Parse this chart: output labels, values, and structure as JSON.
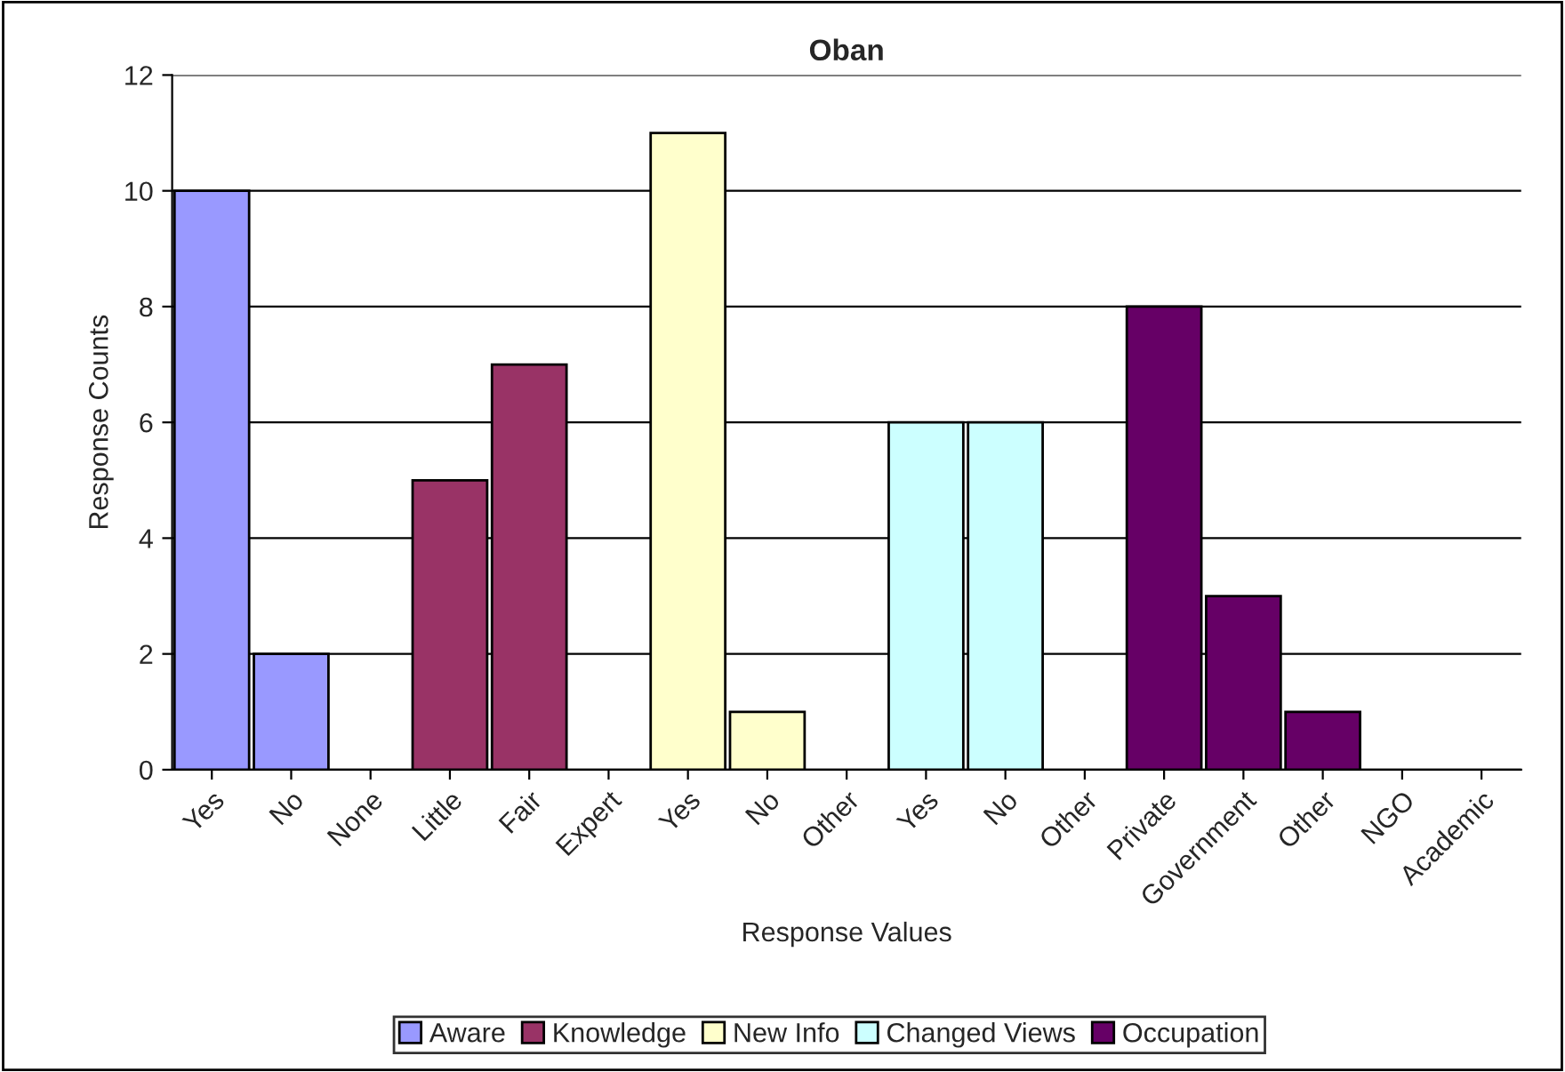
{
  "chart_data": {
    "type": "bar",
    "title": "Oban",
    "xlabel": "Response Values",
    "ylabel": "Response Counts",
    "categories": [
      "Yes",
      "No",
      "None",
      "Little",
      "Fair",
      "Expert",
      "Yes",
      "No",
      "Other",
      "Yes",
      "No",
      "Other",
      "Private",
      "Government",
      "Other",
      "NGO",
      "Academic"
    ],
    "series": [
      {
        "name": "Aware",
        "color": "#9999ff",
        "values": [
          10,
          2,
          0,
          null,
          null,
          null,
          null,
          null,
          null,
          null,
          null,
          null,
          null,
          null,
          null,
          null,
          null
        ]
      },
      {
        "name": "Knowledge",
        "color": "#993366",
        "values": [
          null,
          null,
          null,
          5,
          7,
          0,
          null,
          null,
          null,
          null,
          null,
          null,
          null,
          null,
          null,
          null,
          null
        ]
      },
      {
        "name": "New Info",
        "color": "#ffffcc",
        "values": [
          null,
          null,
          null,
          null,
          null,
          null,
          11,
          1,
          0,
          null,
          null,
          null,
          null,
          null,
          null,
          null,
          null
        ]
      },
      {
        "name": "Changed Views",
        "color": "#ccffff",
        "values": [
          null,
          null,
          null,
          null,
          null,
          null,
          null,
          null,
          null,
          6,
          6,
          0,
          null,
          null,
          null,
          null,
          null
        ]
      },
      {
        "name": "Occupation",
        "color": "#660066",
        "values": [
          null,
          null,
          null,
          null,
          null,
          null,
          null,
          null,
          null,
          null,
          null,
          null,
          8,
          3,
          1,
          0,
          0
        ]
      }
    ],
    "ylim": [
      0,
      12
    ],
    "yticks": [
      0,
      2,
      4,
      6,
      8,
      10,
      12
    ],
    "grid": "y",
    "legend": "bottom"
  }
}
